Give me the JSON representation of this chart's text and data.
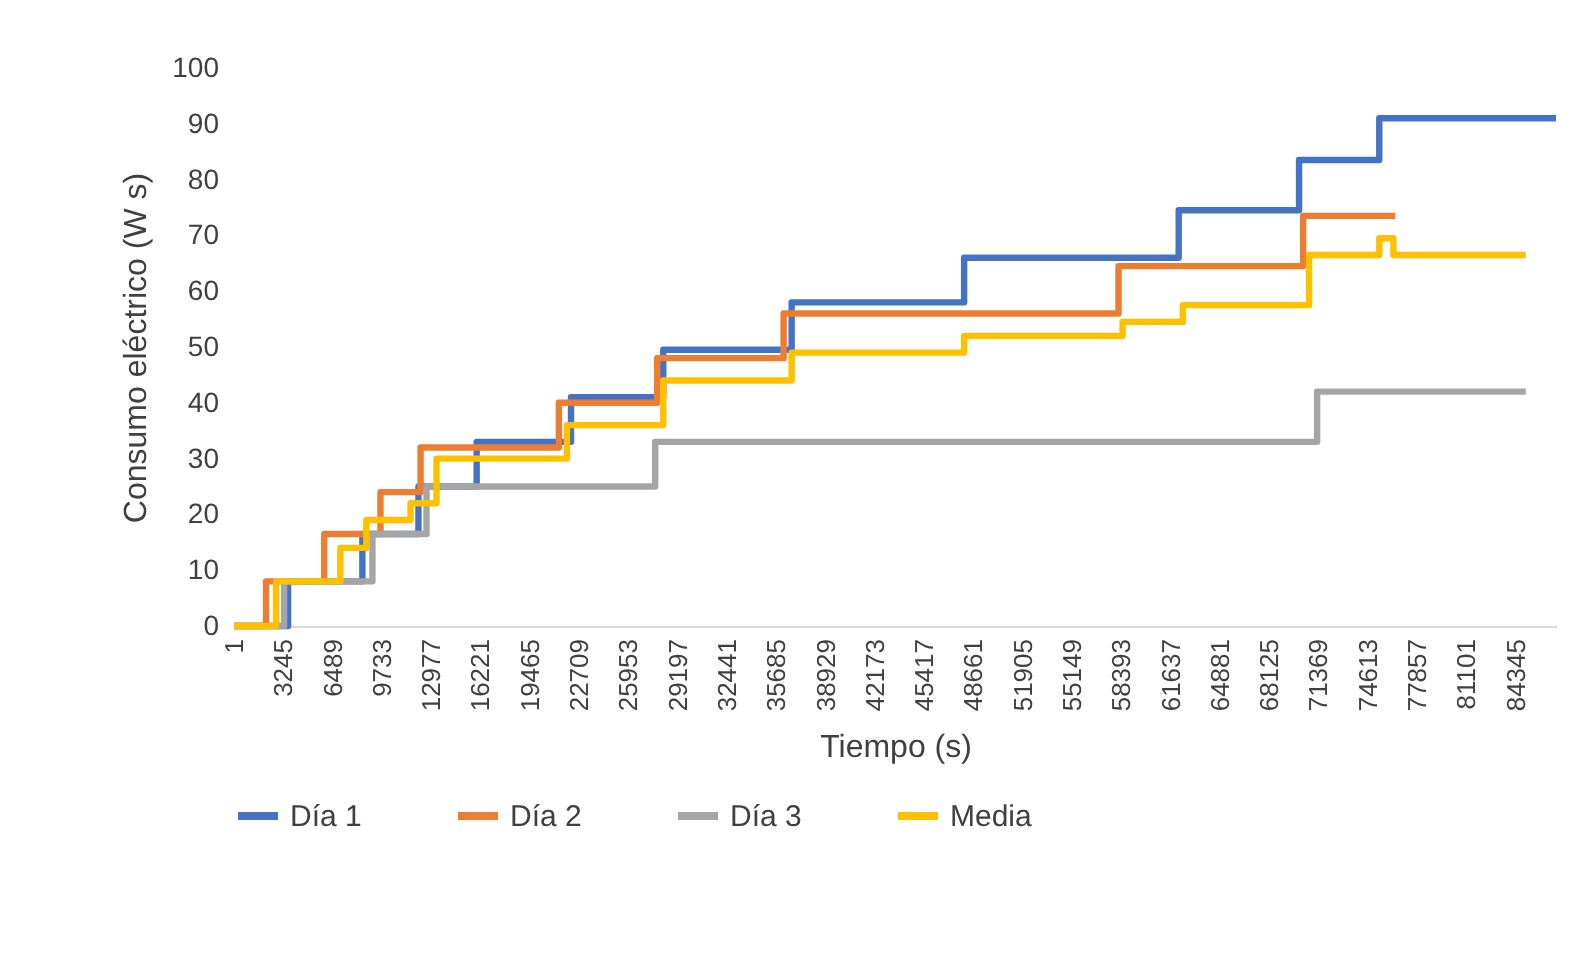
{
  "chart_data": {
    "type": "step",
    "xlabel": "Tiempo (s)",
    "ylabel": "Consumo eléctrico (W s)",
    "xlim": [
      1,
      87000
    ],
    "ylim": [
      0,
      100
    ],
    "yticks": [
      0,
      10,
      20,
      30,
      40,
      50,
      60,
      70,
      80,
      90,
      100
    ],
    "xticks": [
      1,
      3245,
      6489,
      9733,
      12977,
      16221,
      19465,
      22709,
      25953,
      29197,
      32441,
      35685,
      38929,
      42173,
      45417,
      48661,
      51905,
      55149,
      58393,
      61637,
      64881,
      68125,
      71369,
      74613,
      77857,
      81101,
      84345
    ],
    "grid": false,
    "legend": "bottom",
    "marker": "none",
    "line_style": "solid",
    "series": [
      {
        "name": "Día 1",
        "color": "#4472c4",
        "x": [
          1,
          3560,
          8450,
          12140,
          15970,
          22180,
          28250,
          36700,
          48050,
          62170,
          70090,
          75370,
          87000
        ],
        "values": [
          0,
          8,
          16.5,
          25,
          33,
          41,
          49.5,
          58,
          66,
          74.5,
          83.5,
          91,
          91
        ]
      },
      {
        "name": "Día 2",
        "color": "#ed7d31",
        "x": [
          1,
          2110,
          5940,
          9640,
          12280,
          21380,
          27850,
          36170,
          58210,
          70360,
          76430
        ],
        "values": [
          0,
          8,
          16.5,
          24,
          32,
          40,
          48,
          56,
          64.5,
          73.5,
          73.5
        ]
      },
      {
        "name": "Día 3",
        "color": "#a5a5a5",
        "x": [
          1,
          3300,
          9110,
          12670,
          27720,
          71280,
          85010
        ],
        "values": [
          0,
          8,
          16.5,
          25,
          33,
          42,
          42
        ]
      },
      {
        "name": "Media",
        "color": "#ffc000",
        "x": [
          1,
          2770,
          7000,
          8710,
          11620,
          13330,
          21910,
          28250,
          36700,
          48050,
          58480,
          62440,
          70750,
          75370,
          76300,
          85010
        ],
        "values": [
          0,
          8,
          14,
          19,
          22,
          30,
          36,
          44,
          49,
          52,
          54.5,
          57.5,
          66.5,
          69.5,
          66.5,
          66.5
        ]
      }
    ]
  }
}
